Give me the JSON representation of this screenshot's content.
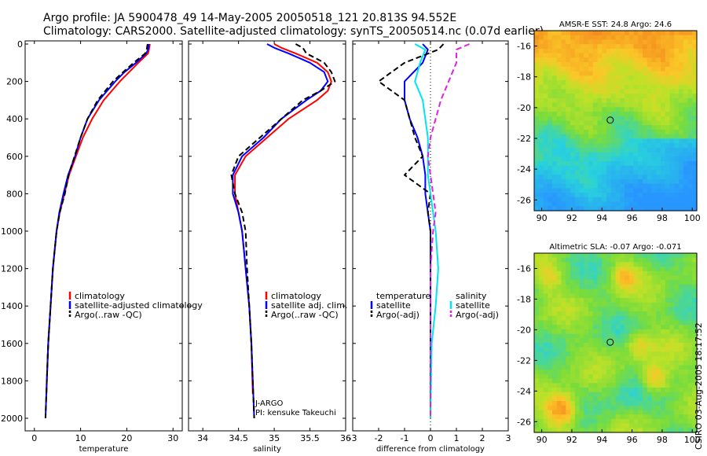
{
  "header": {
    "line1": "Argo profile: JA 5900478_49 14-May-2005 20050518_121 20.813S 94.552E",
    "line2": "Climatology: CARS2000. Satellite-adjusted climatology: synTS_20050514.nc (0.07d earlier)"
  },
  "credit": "CSIRO 03-Aug-2005 18:17:52",
  "colors": {
    "red": "#ff0000",
    "blue": "#0000ff",
    "black": "#000000",
    "cyan": "#00e5ee",
    "magenta": "#e020e0"
  },
  "chart_data": [
    {
      "type": "line",
      "id": "temperature",
      "xlabel": "temperature",
      "ylabel": "",
      "xlim": [
        -2,
        32
      ],
      "ylim": [
        2050,
        0
      ],
      "xticks": [
        "0",
        "10",
        "20",
        "30"
      ],
      "xtick_values": [
        0,
        10,
        20,
        30
      ],
      "yticks": [
        "0",
        "200",
        "400",
        "600",
        "800",
        "1000",
        "1200",
        "1400",
        "1600",
        "1800",
        "2000"
      ],
      "ytick_values": [
        0,
        200,
        400,
        600,
        800,
        1000,
        1200,
        1400,
        1600,
        1800,
        2000
      ],
      "legend": [
        "climatology",
        "satellite-adjusted climatology",
        "Argo(..raw -QC)"
      ],
      "series": [
        {
          "name": "climatology",
          "color": "red",
          "dash": false,
          "depth": [
            0,
            30,
            50,
            100,
            150,
            200,
            300,
            400,
            500,
            600,
            700,
            800,
            900,
            1000,
            1200,
            1400,
            1600,
            1800,
            1870
          ],
          "values": [
            25,
            24.8,
            24.6,
            22.5,
            20.5,
            18.5,
            15,
            12.5,
            10.5,
            9,
            7.5,
            6.5,
            5.5,
            4.8,
            4,
            3.5,
            3,
            2.7,
            2.6
          ]
        },
        {
          "name": "satellite",
          "color": "blue",
          "dash": false,
          "depth": [
            0,
            30,
            50,
            100,
            150,
            200,
            300,
            400,
            500,
            600,
            700,
            800,
            900,
            1000,
            1200,
            1400,
            1600,
            1800,
            2000
          ],
          "values": [
            24.8,
            24.6,
            24.2,
            22,
            19.5,
            17.5,
            14,
            11.5,
            10,
            8.8,
            7.3,
            6.3,
            5.4,
            4.8,
            4,
            3.5,
            3,
            2.7,
            2.4
          ]
        },
        {
          "name": "argo",
          "color": "black",
          "dash": true,
          "depth": [
            0,
            30,
            50,
            100,
            150,
            200,
            300,
            400,
            500,
            600,
            700,
            800,
            900,
            1000,
            1200,
            1400,
            1600,
            1800,
            2000
          ],
          "values": [
            24.5,
            24.3,
            24,
            21.5,
            19.2,
            17,
            13.7,
            11.5,
            10,
            8.7,
            7.4,
            6.6,
            5.5,
            4.8,
            4,
            3.5,
            3,
            2.7,
            2.4
          ]
        }
      ]
    },
    {
      "type": "line",
      "id": "salinity",
      "xlabel": "salinity",
      "ylabel": "",
      "xlim": [
        33.8,
        36.0
      ],
      "ylim": [
        2050,
        0
      ],
      "xticks": [
        "34",
        "34.5",
        "35",
        "35.5",
        "36"
      ],
      "xtick_values": [
        34,
        34.5,
        35,
        35.5,
        36
      ],
      "legend": [
        "climatology",
        "satellite adj. clim.",
        "Argo(..raw -QC)"
      ],
      "annotation": [
        "J-ARGO",
        "PI: kensuke Takeuchi"
      ],
      "series": [
        {
          "name": "climatology",
          "color": "red",
          "dash": false,
          "depth": [
            0,
            20,
            50,
            100,
            150,
            200,
            250,
            300,
            400,
            500,
            600,
            700,
            800,
            900,
            1000,
            1200,
            1400,
            1600,
            1870
          ],
          "values": [
            35.0,
            35.1,
            35.3,
            35.6,
            35.75,
            35.8,
            35.75,
            35.6,
            35.2,
            34.9,
            34.6,
            34.45,
            34.45,
            34.5,
            34.55,
            34.6,
            34.65,
            34.68,
            34.7
          ]
        },
        {
          "name": "satellite",
          "color": "blue",
          "dash": false,
          "depth": [
            0,
            20,
            50,
            100,
            150,
            200,
            250,
            300,
            400,
            500,
            600,
            700,
            800,
            900,
            1000,
            1200,
            1400,
            1600,
            2000
          ],
          "values": [
            34.9,
            35.0,
            35.2,
            35.5,
            35.7,
            35.75,
            35.65,
            35.45,
            35.1,
            34.85,
            34.55,
            34.42,
            34.42,
            34.5,
            34.55,
            34.6,
            34.65,
            34.68,
            34.72
          ]
        },
        {
          "name": "argo",
          "color": "black",
          "dash": true,
          "depth": [
            0,
            20,
            50,
            100,
            150,
            200,
            250,
            300,
            400,
            500,
            600,
            700,
            800,
            900,
            1000,
            1200,
            1400,
            1600,
            2000
          ],
          "values": [
            35.3,
            35.4,
            35.45,
            35.7,
            35.8,
            35.85,
            35.65,
            35.4,
            35.1,
            34.8,
            34.5,
            34.4,
            34.45,
            34.55,
            34.6,
            34.62,
            34.65,
            34.68,
            34.72
          ]
        }
      ]
    },
    {
      "type": "line",
      "id": "difference",
      "xlabel": "difference from climatology",
      "ylabel": "",
      "xlim": [
        -3,
        3
      ],
      "ylim": [
        2050,
        0
      ],
      "xticks": [
        "-3",
        "-2",
        "-1",
        "0",
        "1",
        "2",
        "3"
      ],
      "xtick_values": [
        -3,
        -2,
        -1,
        0,
        1,
        2,
        3
      ],
      "legend_left": [
        "temperature",
        "satellite",
        "Argo(-adj)"
      ],
      "legend_right": [
        "salinity",
        "satellite",
        "Argo(-adj)"
      ],
      "series": [
        {
          "name": "temperature satellite",
          "color": "blue",
          "dash": false,
          "depth": [
            0,
            30,
            100,
            200,
            300,
            400,
            500,
            600,
            700,
            800,
            900,
            1000,
            1200,
            1600,
            2000
          ],
          "values": [
            -0.3,
            -0.1,
            -0.3,
            -1.0,
            -1.0,
            -0.8,
            -0.5,
            -0.3,
            -0.2,
            -0.2,
            -0.1,
            0.0,
            0.0,
            0.0,
            0.0
          ]
        },
        {
          "name": "temperature argo",
          "color": "black",
          "dash": true,
          "depth": [
            0,
            30,
            100,
            150,
            200,
            250,
            300,
            400,
            500,
            600,
            700,
            750,
            800,
            900,
            1000,
            1200,
            1600,
            2000
          ],
          "values": [
            0.5,
            0.3,
            -1.0,
            -1.5,
            -2.0,
            -1.5,
            -1.0,
            -0.8,
            -0.6,
            -0.3,
            -1.0,
            -0.5,
            0.0,
            -0.1,
            0.0,
            0.0,
            0.0,
            0.0
          ]
        },
        {
          "name": "salinity satellite",
          "color": "cyan",
          "dash": false,
          "depth": [
            0,
            30,
            100,
            200,
            300,
            400,
            500,
            600,
            700,
            800,
            900,
            1000,
            1200,
            1400,
            1600,
            2000
          ],
          "values": [
            -0.6,
            -0.2,
            -0.4,
            -0.6,
            -0.3,
            -0.2,
            -0.1,
            -0.1,
            -0.1,
            0.0,
            0.1,
            0.2,
            0.3,
            0.2,
            0.05,
            0.0
          ]
        },
        {
          "name": "salinity argo",
          "color": "magenta",
          "dash": true,
          "depth": [
            0,
            30,
            100,
            200,
            300,
            400,
            500,
            600,
            700,
            800,
            900,
            1000,
            1200,
            1600,
            2000
          ],
          "values": [
            1.5,
            1.0,
            1.0,
            0.7,
            0.4,
            0.2,
            0.0,
            -0.1,
            0.0,
            0.1,
            0.2,
            0.1,
            0.0,
            0.0,
            0.0
          ]
        }
      ]
    },
    {
      "type": "heatmap",
      "id": "sst",
      "title": "AMSR-E SST: 24.8 Argo: 24.6",
      "xlim": [
        89.5,
        100.3
      ],
      "ylim": [
        -26.7,
        -15
      ],
      "xticks": [
        "90",
        "92",
        "94",
        "96",
        "98",
        "100"
      ],
      "xtick_values": [
        90,
        92,
        94,
        96,
        98,
        100
      ],
      "yticks": [
        "-16",
        "-18",
        "-20",
        "-22",
        "-24",
        "-26"
      ],
      "ytick_values": [
        -16,
        -18,
        -20,
        -22,
        -24,
        -26
      ],
      "marker": {
        "lon": 94.55,
        "lat": -20.81
      }
    },
    {
      "type": "heatmap",
      "id": "sla",
      "title": "Altimetric SLA: -0.07 Argo: -0.071",
      "xlim": [
        89.5,
        100.3
      ],
      "ylim": [
        -26.7,
        -15
      ],
      "xticks": [
        "90",
        "92",
        "94",
        "96",
        "98",
        "100"
      ],
      "xtick_values": [
        90,
        92,
        94,
        96,
        98,
        100
      ],
      "yticks": [
        "-16",
        "-18",
        "-20",
        "-22",
        "-24",
        "-26"
      ],
      "ytick_values": [
        -16,
        -18,
        -20,
        -22,
        -24,
        -26
      ],
      "marker": {
        "lon": 94.55,
        "lat": -20.81
      }
    }
  ]
}
